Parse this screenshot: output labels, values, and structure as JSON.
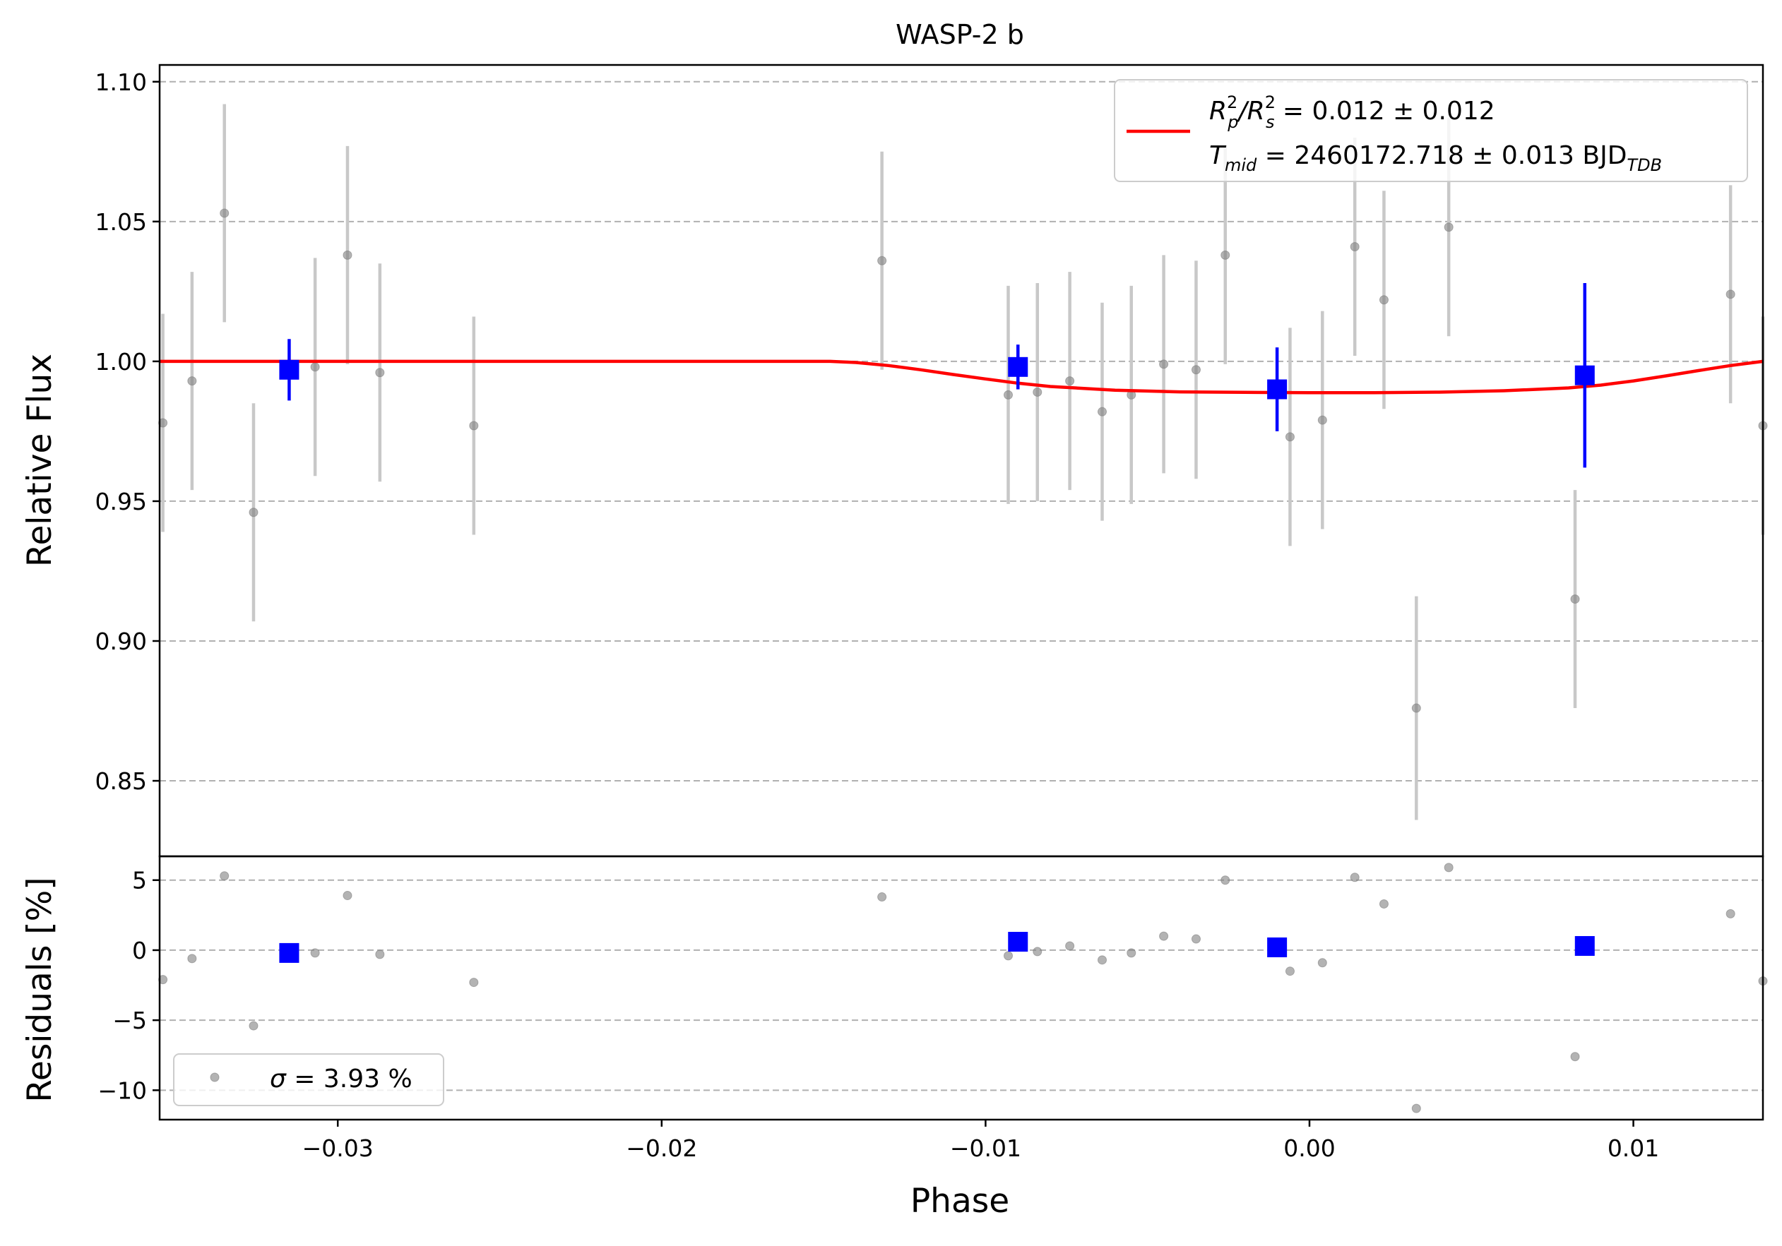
{
  "chart_data": [
    {
      "type": "scatter",
      "title": "WASP-2 b",
      "xlabel": "",
      "ylabel": "Relative Flux",
      "xlim": [
        -0.0355,
        0.014
      ],
      "ylim": [
        0.823,
        1.106
      ],
      "yticks": [
        0.85,
        0.9,
        0.95,
        1.0,
        1.05,
        1.1
      ],
      "ytick_labels": [
        "0.85",
        "0.90",
        "0.95",
        "1.00",
        "1.05",
        "1.10"
      ],
      "grid": "horizontal dashed",
      "legend_placement": "top-right",
      "legend": {
        "line1": {
          "base": "R",
          "sup1": "2",
          "sub1": "p",
          "mid": "/R",
          "sup2": "2",
          "sub2": "s",
          "rest": " = 0.012 ± 0.012"
        },
        "line2": {
          "base": "T",
          "sub": "mid",
          "rest": " = 2460172.718 ± 0.013 BJD",
          "unit_sub": "TDB"
        }
      },
      "colors": {
        "data": "#808080",
        "errorbar": "#c8c8c8",
        "binned": "#0000ff",
        "model": "#ff0000",
        "grid": "#b0b0b0"
      },
      "series": [
        {
          "kind": "data",
          "x": [
            -0.0354,
            -0.0345,
            -0.0335,
            -0.0326,
            -0.0307,
            -0.0297,
            -0.0287,
            -0.0258,
            -0.0132,
            -0.0093,
            -0.0084,
            -0.0074,
            -0.0064,
            -0.0055,
            -0.0045,
            -0.0035,
            -0.0026,
            -0.0006,
            0.0004,
            0.0014,
            0.0023,
            0.0033,
            0.0043,
            0.0082,
            0.013,
            0.014
          ],
          "y": [
            0.978,
            0.993,
            1.053,
            0.946,
            0.998,
            1.038,
            0.996,
            0.977,
            1.036,
            0.988,
            0.989,
            0.993,
            0.982,
            0.988,
            0.999,
            0.997,
            1.038,
            0.973,
            0.979,
            1.041,
            1.022,
            0.876,
            1.048,
            0.915,
            1.024,
            0.977
          ],
          "yerr": [
            0.039,
            0.039,
            0.039,
            0.039,
            0.039,
            0.039,
            0.039,
            0.039,
            0.039,
            0.039,
            0.039,
            0.039,
            0.039,
            0.039,
            0.039,
            0.039,
            0.039,
            0.039,
            0.039,
            0.039,
            0.039,
            0.04,
            0.039,
            0.039,
            0.039,
            0.039
          ]
        },
        {
          "kind": "binned",
          "x": [
            -0.0315,
            -0.009,
            -0.001,
            0.0085
          ],
          "y": [
            0.997,
            0.998,
            0.99,
            0.995
          ],
          "yerr": [
            0.011,
            0.008,
            0.015,
            0.033
          ]
        },
        {
          "kind": "model",
          "x": [
            -0.0355,
            -0.0148,
            -0.014,
            -0.013,
            -0.012,
            -0.011,
            -0.01,
            -0.009,
            -0.008,
            -0.006,
            -0.004,
            -0.002,
            0.0,
            0.002,
            0.004,
            0.006,
            0.008,
            0.009,
            0.01,
            0.011,
            0.012,
            0.013,
            0.014
          ],
          "y": [
            1.0,
            1.0,
            0.9996,
            0.9985,
            0.997,
            0.9953,
            0.9937,
            0.9922,
            0.991,
            0.9897,
            0.9891,
            0.9889,
            0.9888,
            0.9888,
            0.989,
            0.9895,
            0.9905,
            0.9915,
            0.993,
            0.9948,
            0.9967,
            0.9985,
            1.0
          ]
        }
      ]
    },
    {
      "type": "scatter",
      "title": "",
      "xlabel": "Phase",
      "ylabel": "Residuals [%]",
      "xlim": [
        -0.0355,
        0.014
      ],
      "ylim": [
        -12.1,
        6.7
      ],
      "xticks": [
        -0.03,
        -0.02,
        -0.01,
        0.0,
        0.01
      ],
      "xtick_labels": [
        "−0.03",
        "−0.02",
        "−0.01",
        "0.00",
        "0.01"
      ],
      "yticks": [
        -10,
        -5,
        0,
        5
      ],
      "ytick_labels": [
        "−10",
        "−5",
        "0",
        "5"
      ],
      "grid": "horizontal dashed",
      "legend_placement": "bottom-left",
      "legend": {
        "sigma_symbol": "σ",
        "label": " = 3.93 %"
      },
      "series": [
        {
          "kind": "data",
          "x": [
            -0.0354,
            -0.0345,
            -0.0335,
            -0.0326,
            -0.0307,
            -0.0297,
            -0.0287,
            -0.0258,
            -0.0132,
            -0.0093,
            -0.0084,
            -0.0074,
            -0.0064,
            -0.0055,
            -0.0045,
            -0.0035,
            -0.0026,
            -0.0006,
            0.0004,
            0.0014,
            0.0023,
            0.0033,
            0.0043,
            0.0082,
            0.013,
            0.014
          ],
          "y": [
            -2.1,
            -0.6,
            5.3,
            -5.4,
            -0.2,
            3.9,
            -0.3,
            -2.3,
            3.8,
            -0.4,
            -0.1,
            0.3,
            -0.7,
            -0.2,
            1.0,
            0.8,
            5.0,
            -1.5,
            -0.9,
            5.2,
            3.3,
            -11.3,
            5.9,
            -7.6,
            2.6,
            -2.2
          ]
        },
        {
          "kind": "binned",
          "x": [
            -0.0315,
            -0.009,
            -0.001,
            0.0085
          ],
          "y": [
            -0.2,
            0.6,
            0.2,
            0.3
          ]
        }
      ]
    }
  ]
}
